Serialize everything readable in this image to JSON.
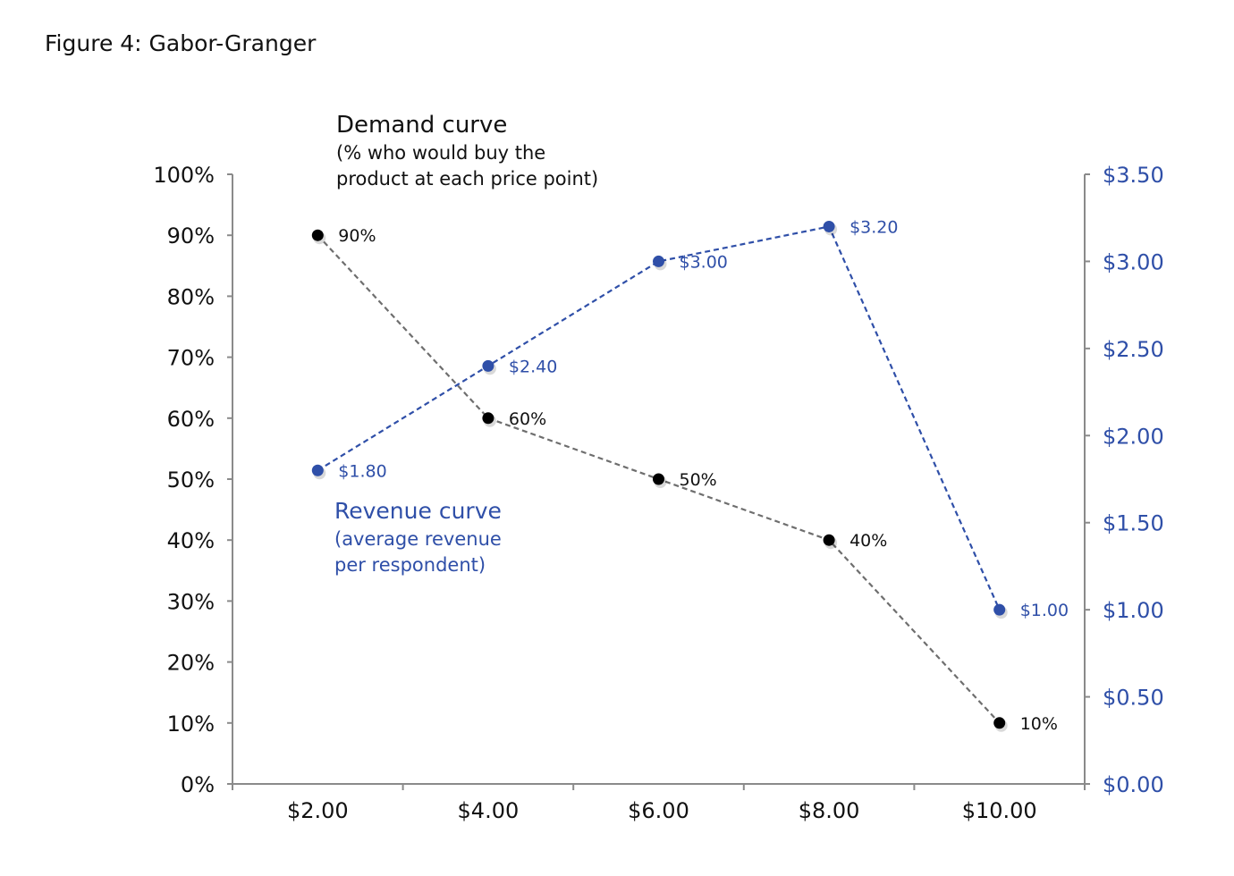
{
  "figure_title": "Figure 4: Gabor-Granger",
  "chart_data": {
    "type": "line",
    "title": "Figure 4: Gabor-Granger",
    "categories": [
      "$2.00",
      "$4.00",
      "$6.00",
      "$8.00",
      "$10.00"
    ],
    "left_axis": {
      "range": [
        0,
        100
      ],
      "ticks": [
        "0%",
        "10%",
        "20%",
        "30%",
        "40%",
        "50%",
        "60%",
        "70%",
        "80%",
        "90%",
        "100%"
      ]
    },
    "right_axis": {
      "range": [
        0,
        3.5
      ],
      "ticks": [
        "$0.00",
        "$0.50",
        "$1.00",
        "$1.50",
        "$2.00",
        "$2.50",
        "$3.00",
        "$3.50"
      ]
    },
    "series": [
      {
        "name": "Demand curve",
        "axis": "left",
        "color": "#000000",
        "line_color": "#6e6e6e",
        "values": [
          90,
          60,
          50,
          40,
          10
        ],
        "labels": [
          "90%",
          "60%",
          "50%",
          "40%",
          "10%"
        ]
      },
      {
        "name": "Revenue curve",
        "axis": "right",
        "color": "#2f4fa8",
        "line_color": "#2f4fa8",
        "values": [
          1.8,
          2.4,
          3.0,
          3.2,
          1.0
        ],
        "labels": [
          "$1.80",
          "$2.40",
          "$3.00",
          "$3.20",
          "$1.00"
        ]
      }
    ],
    "annotations": {
      "demand_title": "Demand curve",
      "demand_sub1": "(% who would buy the",
      "demand_sub2": "product at each price point)",
      "revenue_title": "Revenue curve",
      "revenue_sub1": "(average revenue",
      "revenue_sub2": "per respondent)"
    }
  }
}
